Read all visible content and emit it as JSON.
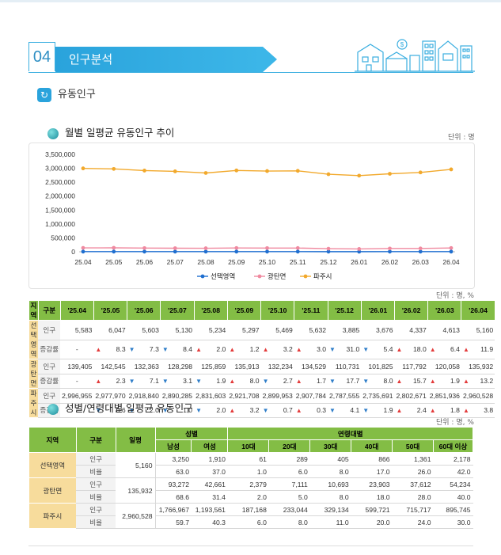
{
  "section": {
    "number": "04",
    "title": "인구분석"
  },
  "subsection": {
    "title": "유동인구",
    "icon": "arrow-circle-icon"
  },
  "chart_title": "월별 일평균 유동인구 추이",
  "unit1": "단위 : 명",
  "chart_data": {
    "type": "line",
    "x": [
      "25.04",
      "25.05",
      "25.06",
      "25.07",
      "25.08",
      "25.09",
      "25.10",
      "25.11",
      "25.12",
      "26.01",
      "26.02",
      "26.03",
      "26.04"
    ],
    "yticks": [
      "3,500,000",
      "3,000,000",
      "2,500,000",
      "2,000,000",
      "1,500,000",
      "1,000,000",
      "500,000",
      "0"
    ],
    "ylim": [
      0,
      3500000
    ],
    "grid": false,
    "legend_position": "bottom",
    "series": [
      {
        "name": "선택영역",
        "color": "#1f6fd0",
        "values": [
          5583,
          6047,
          5603,
          5130,
          5234,
          5297,
          5469,
          5632,
          3885,
          3676,
          4337,
          4613,
          5160
        ]
      },
      {
        "name": "광탄면",
        "color": "#f08aa0",
        "values": [
          139405,
          142545,
          132363,
          128298,
          125859,
          135913,
          132234,
          134529,
          110731,
          101825,
          117792,
          120058,
          135932
        ]
      },
      {
        "name": "파주시",
        "color": "#f2a92c",
        "values": [
          2996955,
          2977970,
          2918840,
          2890285,
          2831603,
          2921708,
          2899953,
          2907784,
          2787555,
          2735691,
          2802671,
          2851936,
          2960528
        ]
      }
    ]
  },
  "unit2": "단위 : 명, %",
  "table1": {
    "headers": [
      "지역",
      "구분",
      "'25.04",
      "'25.05",
      "'25.06",
      "'25.07",
      "'25.08",
      "'25.09",
      "'25.10",
      "'25.11",
      "'25.12",
      "'26.01",
      "'26.02",
      "'26.03",
      "'26.04"
    ],
    "groups": [
      {
        "region": "선택\n영역",
        "pop_label": "인구",
        "pop": [
          "5,583",
          "6,047",
          "5,603",
          "5,130",
          "5,234",
          "5,297",
          "5,469",
          "5,632",
          "3,885",
          "3,676",
          "4,337",
          "4,613",
          "5,160"
        ],
        "rate_label": "증감률",
        "rate": [
          {
            "d": "",
            "v": "-"
          },
          {
            "d": "up",
            "v": "8.3"
          },
          {
            "d": "down",
            "v": "7.3"
          },
          {
            "d": "down",
            "v": "8.4"
          },
          {
            "d": "up",
            "v": "2.0"
          },
          {
            "d": "up",
            "v": "1.2"
          },
          {
            "d": "up",
            "v": "3.2"
          },
          {
            "d": "up",
            "v": "3.0"
          },
          {
            "d": "down",
            "v": "31.0"
          },
          {
            "d": "down",
            "v": "5.4"
          },
          {
            "d": "up",
            "v": "18.0"
          },
          {
            "d": "up",
            "v": "6.4"
          },
          {
            "d": "up",
            "v": "11.9"
          }
        ]
      },
      {
        "region": "광탄면",
        "pop_label": "인구",
        "pop": [
          "139,405",
          "142,545",
          "132,363",
          "128,298",
          "125,859",
          "135,913",
          "132,234",
          "134,529",
          "110,731",
          "101,825",
          "117,792",
          "120,058",
          "135,932"
        ],
        "rate_label": "증감률",
        "rate": [
          {
            "d": "",
            "v": "-"
          },
          {
            "d": "up",
            "v": "2.3"
          },
          {
            "d": "down",
            "v": "7.1"
          },
          {
            "d": "down",
            "v": "3.1"
          },
          {
            "d": "down",
            "v": "1.9"
          },
          {
            "d": "up",
            "v": "8.0"
          },
          {
            "d": "down",
            "v": "2.7"
          },
          {
            "d": "up",
            "v": "1.7"
          },
          {
            "d": "down",
            "v": "17.7"
          },
          {
            "d": "down",
            "v": "8.0"
          },
          {
            "d": "up",
            "v": "15.7"
          },
          {
            "d": "up",
            "v": "1.9"
          },
          {
            "d": "up",
            "v": "13.2"
          }
        ]
      },
      {
        "region": "파주시",
        "pop_label": "인구",
        "pop": [
          "2,996,955",
          "2,977,970",
          "2,918,840",
          "2,890,285",
          "2,831,603",
          "2,921,708",
          "2,899,953",
          "2,907,784",
          "2,787,555",
          "2,735,691",
          "2,802,671",
          "2,851,936",
          "2,960,528"
        ],
        "rate_label": "증감률",
        "rate": [
          {
            "d": "",
            "v": "-"
          },
          {
            "d": "down",
            "v": "0.6"
          },
          {
            "d": "down",
            "v": "2.0"
          },
          {
            "d": "down",
            "v": "1.0"
          },
          {
            "d": "down",
            "v": "2.0"
          },
          {
            "d": "up",
            "v": "3.2"
          },
          {
            "d": "down",
            "v": "0.7"
          },
          {
            "d": "up",
            "v": "0.3"
          },
          {
            "d": "down",
            "v": "4.1"
          },
          {
            "d": "down",
            "v": "1.9"
          },
          {
            "d": "up",
            "v": "2.4"
          },
          {
            "d": "up",
            "v": "1.8"
          },
          {
            "d": "up",
            "v": "3.8"
          }
        ]
      }
    ]
  },
  "section2_title": "성별/연령대별 일평균 유동인구",
  "unit3": "단위 : 명, %",
  "table2": {
    "h_region": "지역",
    "h_cat": "구분",
    "h_daily": "일평",
    "h_gender": "성별",
    "h_age": "연령대별",
    "gender_cols": [
      "남성",
      "여성"
    ],
    "age_cols": [
      "10대",
      "20대",
      "30대",
      "40대",
      "50대",
      "60대 이상"
    ],
    "rows": [
      {
        "region": "선택영역",
        "daily": "5,160",
        "pop_label": "인구",
        "pop": [
          "3,250",
          "1,910",
          "61",
          "289",
          "405",
          "866",
          "1,361",
          "2,178"
        ],
        "ratio_label": "비율",
        "ratio": [
          "63.0",
          "37.0",
          "1.0",
          "6.0",
          "8.0",
          "17.0",
          "26.0",
          "42.0"
        ]
      },
      {
        "region": "광탄면",
        "daily": "135,932",
        "pop_label": "인구",
        "pop": [
          "93,272",
          "42,661",
          "2,379",
          "7,111",
          "10,693",
          "23,903",
          "37,612",
          "54,234"
        ],
        "ratio_label": "비율",
        "ratio": [
          "68.6",
          "31.4",
          "2.0",
          "5.0",
          "8.0",
          "18.0",
          "28.0",
          "40.0"
        ]
      },
      {
        "region": "파주시",
        "daily": "2,960,528",
        "pop_label": "인구",
        "pop": [
          "1,766,967",
          "1,193,561",
          "187,168",
          "233,044",
          "329,134",
          "599,721",
          "715,717",
          "895,745"
        ],
        "ratio_label": "비율",
        "ratio": [
          "59.7",
          "40.3",
          "6.0",
          "8.0",
          "11.0",
          "20.0",
          "24.0",
          "30.0"
        ]
      }
    ]
  }
}
